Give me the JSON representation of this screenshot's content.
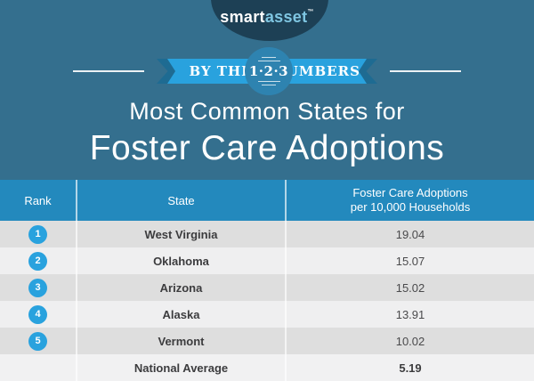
{
  "brand": {
    "logo_smart": "smart",
    "logo_asset": "asset",
    "logo_tm": "™"
  },
  "banner": {
    "left_word": "BY THE",
    "circle_text": "1·2·3",
    "right_word": "NUMBERS"
  },
  "title": {
    "line1": "Most Common States for",
    "line2": "Foster Care Adoptions"
  },
  "table": {
    "headers": {
      "rank": "Rank",
      "state": "State",
      "value_line1": "Foster Care Adoptions",
      "value_line2": "per 10,000 Households"
    },
    "rows": [
      {
        "rank": "1",
        "state": "West Virginia",
        "value": "19.04"
      },
      {
        "rank": "2",
        "state": "Oklahoma",
        "value": "15.07"
      },
      {
        "rank": "3",
        "state": "Arizona",
        "value": "15.02"
      },
      {
        "rank": "4",
        "state": "Alaska",
        "value": "13.91"
      },
      {
        "rank": "5",
        "state": "Vermont",
        "value": "10.02"
      }
    ],
    "footer": {
      "state": "National Average",
      "value": "5.19"
    }
  },
  "colors": {
    "hero_teal": "#346f8e",
    "logo_navy": "#1d4055",
    "logo_asset_blue": "#7fc6e2",
    "ribbon_blue": "#29a2de",
    "ribbon_chevron_dark": "#1e6b92",
    "badge_circle_blue": "#2e83b0",
    "table_header_blue": "#2389bd",
    "row_odd_gray": "#dedede",
    "row_even_gray": "#efeff0",
    "footer_row_gray": "#f1f1f2",
    "rank_circle_blue": "#29a2de"
  },
  "chart_data": {
    "type": "table",
    "title": "Most Common States for Foster Care Adoptions",
    "columns": [
      "Rank",
      "State",
      "Foster Care Adoptions per 10,000 Households"
    ],
    "rows": [
      [
        1,
        "West Virginia",
        19.04
      ],
      [
        2,
        "Oklahoma",
        15.07
      ],
      [
        3,
        "Arizona",
        15.02
      ],
      [
        4,
        "Alaska",
        13.91
      ],
      [
        5,
        "Vermont",
        10.02
      ],
      [
        null,
        "National Average",
        5.19
      ]
    ]
  }
}
